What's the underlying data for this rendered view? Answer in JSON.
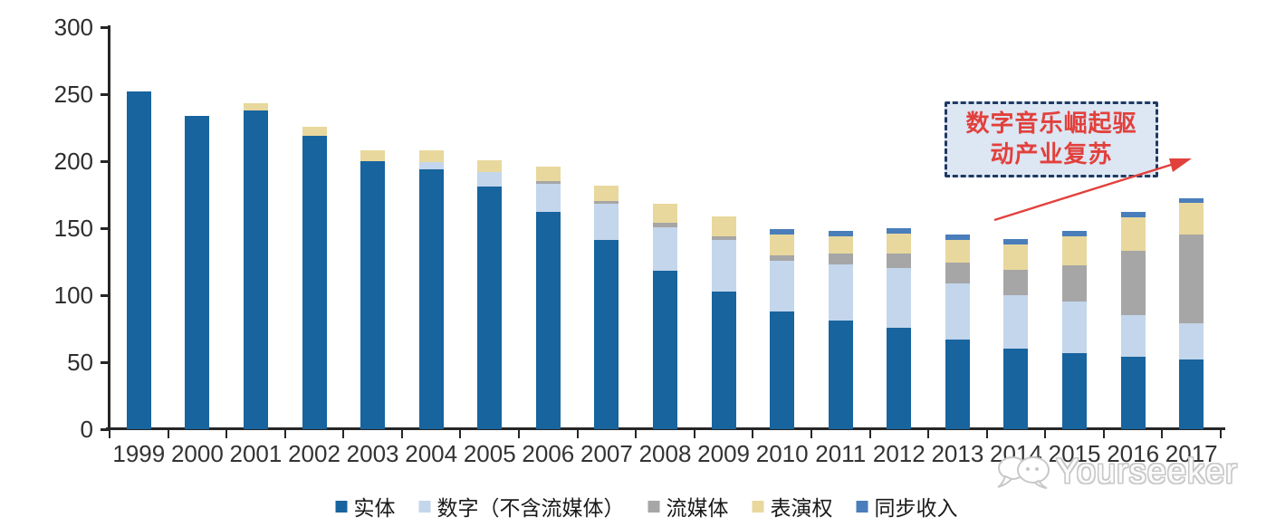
{
  "watermark": {
    "brand": "Yourseeker",
    "icon": "chat-bubbles-icon"
  },
  "annotation": {
    "line1": "数字音乐崛起驱",
    "line2": "动产业复苏",
    "box_fill": "#DDE6F3",
    "border_color": "#1F3A64",
    "text_color": "#E2403C",
    "arrow_color": "#E2403C"
  },
  "axis_colors": {
    "line": "#262626",
    "tick_label": "#2e2e2e"
  },
  "chart_data": {
    "type": "bar",
    "stacked": true,
    "grid": false,
    "legend_position": "bottom",
    "ylim": [
      0,
      300
    ],
    "yticks": [
      0,
      50,
      100,
      150,
      200,
      250,
      300
    ],
    "categories": [
      "1999",
      "2000",
      "2001",
      "2002",
      "2003",
      "2004",
      "2005",
      "2006",
      "2007",
      "2008",
      "2009",
      "2010",
      "2011",
      "2012",
      "2013",
      "2014",
      "2015",
      "2016",
      "2017"
    ],
    "series": [
      {
        "name": "实体",
        "key": "physical",
        "color": "#17649E",
        "values": [
          252,
          234,
          238,
          219,
          200,
          194,
          181,
          162,
          141,
          118,
          103,
          88,
          81,
          76,
          67,
          60,
          57,
          54,
          52
        ]
      },
      {
        "name": "数字（不含流媒体）",
        "key": "digital-excl-streaming",
        "color": "#C3D6EB",
        "values": [
          0,
          0,
          0,
          0,
          0,
          5,
          11,
          21,
          27,
          33,
          38,
          38,
          42,
          44,
          42,
          40,
          38,
          31,
          27
        ]
      },
      {
        "name": "流媒体",
        "key": "streaming",
        "color": "#A6A6A6",
        "values": [
          0,
          0,
          0,
          0,
          0,
          0,
          0,
          2,
          2,
          3,
          3,
          4,
          8,
          11,
          15,
          19,
          27,
          48,
          66
        ]
      },
      {
        "name": "表演权",
        "key": "performance-rights",
        "color": "#E8D89D",
        "values": [
          0,
          0,
          5,
          7,
          8,
          9,
          9,
          11,
          12,
          14,
          15,
          15,
          13,
          15,
          17,
          19,
          22,
          25,
          24
        ]
      },
      {
        "name": "同步收入",
        "key": "sync-revenue",
        "color": "#4A7EBB",
        "values": [
          0,
          0,
          0,
          0,
          0,
          0,
          0,
          0,
          0,
          0,
          0,
          4,
          4,
          4,
          4,
          4,
          4,
          4,
          3
        ]
      }
    ]
  }
}
